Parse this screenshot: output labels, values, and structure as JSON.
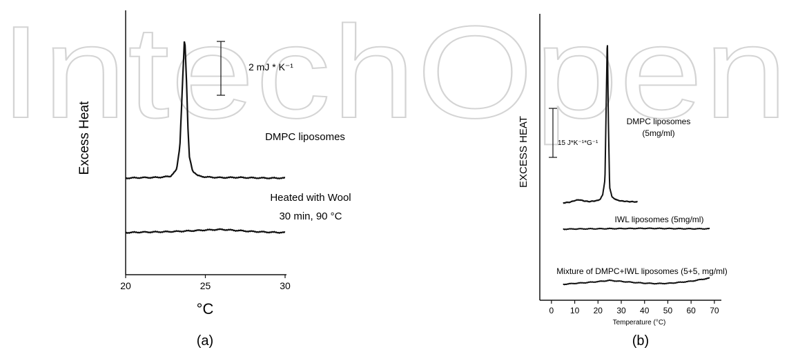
{
  "watermark": {
    "text": "IntechOpen",
    "color": "#d4d4d4"
  },
  "chart_data": [
    {
      "type": "line",
      "panel_label": "(a)",
      "ylabel": "Excess Heat",
      "xlabel": "°C",
      "xlim": [
        20,
        30
      ],
      "xticks": [
        20,
        25,
        30
      ],
      "scale_bar_label": "2 mJ * K⁻¹",
      "scale_bar_value": 2,
      "series": [
        {
          "name": "DMPC liposomes",
          "x": [
            20,
            21,
            22,
            22.8,
            23.2,
            23.4,
            23.55,
            23.7,
            23.8,
            23.9,
            24.0,
            24.2,
            24.5,
            25,
            26,
            27,
            28,
            29,
            30
          ],
          "y": [
            0,
            0.02,
            0.03,
            0.08,
            0.4,
            1.5,
            4.2,
            6.8,
            5.0,
            2.5,
            1.0,
            0.35,
            0.12,
            0.05,
            0.02,
            0.03,
            0.01,
            0.0,
            0.0
          ]
        },
        {
          "name": "Heated with Wool 30 min, 90 °C",
          "x": [
            20,
            21,
            22,
            23,
            24,
            25,
            26,
            27,
            28,
            29,
            30
          ],
          "y": [
            0,
            0.02,
            0.03,
            0.05,
            0.08,
            0.12,
            0.15,
            0.1,
            0.05,
            0.02,
            0.0
          ]
        }
      ],
      "annotations": [
        "DMPC liposomes",
        "Heated with Wool",
        "30 min, 90 °C"
      ]
    },
    {
      "type": "line",
      "panel_label": "(b)",
      "ylabel": "EXCESS HEAT",
      "xlabel": "Temperature (°C)",
      "xlim": [
        -5,
        73
      ],
      "xticks": [
        0,
        10,
        20,
        30,
        40,
        50,
        60,
        70
      ],
      "scale_bar_label": "15 J*K⁻¹*G⁻¹",
      "scale_bar_value": 15,
      "series": [
        {
          "name": "DMPC liposomes (5mg/ml)",
          "x": [
            5,
            8,
            10,
            12,
            14,
            16,
            18,
            20,
            21,
            22,
            23,
            23.5,
            24,
            24.5,
            25,
            26,
            28,
            30,
            33,
            37
          ],
          "y": [
            0,
            0.4,
            1.2,
            1.6,
            1.0,
            0.7,
            0.9,
            1.3,
            2.0,
            4.0,
            12.0,
            48.0,
            85.0,
            40.0,
            8.0,
            3.0,
            1.5,
            1.0,
            0.7,
            0.5
          ]
        },
        {
          "name": "IWL liposomes (5mg/ml)",
          "x": [
            5,
            10,
            20,
            30,
            40,
            50,
            60,
            68
          ],
          "y": [
            0,
            0.1,
            0.2,
            0.3,
            0.4,
            0.3,
            0.2,
            0.2
          ]
        },
        {
          "name": "Mixture of DMPC+IWL liposomes (5+5, mg/ml)",
          "x": [
            5,
            10,
            15,
            20,
            25,
            30,
            35,
            40,
            45,
            50,
            55,
            60,
            65,
            68
          ],
          "y": [
            0,
            0.5,
            0.9,
            1.4,
            2.0,
            1.5,
            1.0,
            0.6,
            0.4,
            0.5,
            1.0,
            1.6,
            2.6,
            3.2
          ]
        }
      ],
      "annotations": [
        "DMPC liposomes",
        "(5mg/ml)",
        "IWL liposomes (5mg/ml)",
        "Mixture of DMPC+IWL liposomes (5+5, mg/ml)"
      ]
    }
  ]
}
